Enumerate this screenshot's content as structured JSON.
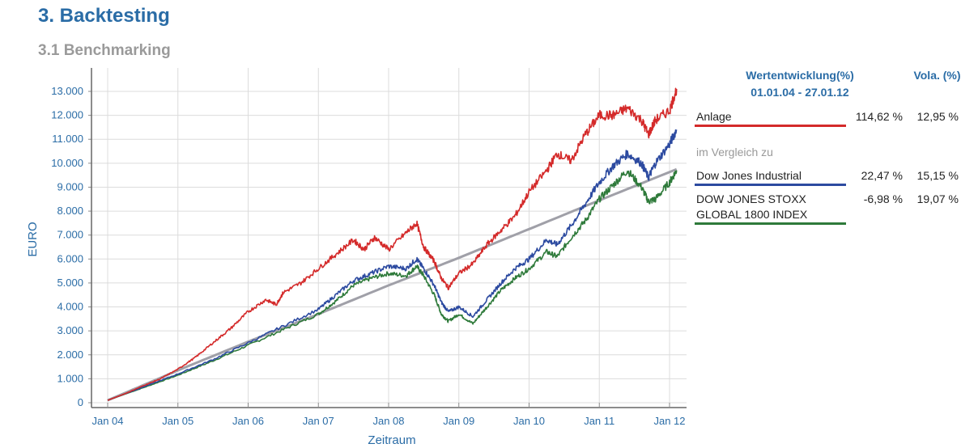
{
  "header": {
    "title": "3. Backtesting",
    "subtitle": "3.1 Benchmarking"
  },
  "legend": {
    "col_perf": "Wertentwicklung(%)",
    "col_perf_period": "01.01.04 - 27.01.12",
    "col_vola": "Vola. (%)",
    "comparison_label": "im Vergleich zu",
    "rows": [
      {
        "name_line1": "Anlage",
        "name_line2": "",
        "perf": "114,62 %",
        "vola": "12,95 %",
        "color": "#d42a2a"
      },
      {
        "name_line1": "Dow Jones Industrial",
        "name_line2": "",
        "perf": "22,47 %",
        "vola": "15,15 %",
        "color": "#2c4aa0"
      },
      {
        "name_line1": "DOW JONES STOXX",
        "name_line2": "GLOBAL 1800 INDEX",
        "perf": "-6,98 %",
        "vola": "19,07 %",
        "color": "#2e7a3a"
      }
    ]
  },
  "chart_data": {
    "type": "line",
    "xlabel": "Zeitraum",
    "ylabel": "EURO",
    "x_ticks": [
      "Jan 04",
      "Jan 05",
      "Jan 06",
      "Jan 07",
      "Jan 08",
      "Jan 09",
      "Jan 10",
      "Jan 11",
      "Jan 12"
    ],
    "y_ticks": [
      "0",
      "1.000",
      "2.000",
      "3.000",
      "4.000",
      "5.000",
      "6.000",
      "7.000",
      "8.000",
      "9.000",
      "10.000",
      "11.000",
      "12.000",
      "13.000"
    ],
    "ylim": [
      0,
      13500
    ],
    "xlim": [
      2004.0,
      2012.1
    ],
    "grid": true,
    "series": [
      {
        "name": "Anlage",
        "color": "#d42a2a",
        "x": [
          2004.0,
          2004.25,
          2004.5,
          2004.75,
          2005.0,
          2005.25,
          2005.5,
          2005.75,
          2006.0,
          2006.25,
          2006.4,
          2006.5,
          2006.75,
          2007.0,
          2007.25,
          2007.5,
          2007.65,
          2007.8,
          2008.0,
          2008.25,
          2008.4,
          2008.5,
          2008.65,
          2008.75,
          2008.85,
          2009.0,
          2009.2,
          2009.4,
          2009.6,
          2009.8,
          2010.0,
          2010.25,
          2010.4,
          2010.6,
          2010.8,
          2011.0,
          2011.2,
          2011.4,
          2011.6,
          2011.7,
          2011.8,
          2012.0,
          2012.1
        ],
        "y": [
          100,
          380,
          700,
          1000,
          1400,
          1900,
          2500,
          3100,
          3800,
          4300,
          4100,
          4600,
          5000,
          5600,
          6200,
          6800,
          6400,
          6900,
          6400,
          7100,
          7500,
          6500,
          5900,
          5200,
          4800,
          5400,
          5800,
          6600,
          7200,
          7800,
          8800,
          9700,
          10400,
          10100,
          11200,
          12000,
          12000,
          12300,
          11800,
          11200,
          11800,
          12200,
          13100
        ]
      },
      {
        "name": "Dow Jones Industrial",
        "color": "#2c4aa0",
        "x": [
          2004.0,
          2004.5,
          2005.0,
          2005.5,
          2006.0,
          2006.5,
          2007.0,
          2007.25,
          2007.5,
          2007.75,
          2008.0,
          2008.25,
          2008.4,
          2008.5,
          2008.65,
          2008.75,
          2008.85,
          2009.0,
          2009.2,
          2009.4,
          2009.6,
          2009.8,
          2010.0,
          2010.25,
          2010.4,
          2010.6,
          2010.8,
          2011.0,
          2011.2,
          2011.4,
          2011.6,
          2011.7,
          2011.8,
          2012.0,
          2012.1
        ],
        "y": [
          100,
          650,
          1200,
          1800,
          2500,
          3200,
          3900,
          4500,
          5100,
          5400,
          5700,
          5600,
          6000,
          5600,
          4900,
          4200,
          3800,
          4000,
          3600,
          4300,
          5000,
          5600,
          6000,
          6800,
          6600,
          7400,
          8300,
          9200,
          9900,
          10400,
          10000,
          9400,
          10000,
          10800,
          11400
        ]
      },
      {
        "name": "DOW JONES STOXX GLOBAL 1800 INDEX",
        "color": "#2e7a3a",
        "x": [
          2004.0,
          2004.5,
          2005.0,
          2005.5,
          2006.0,
          2006.5,
          2007.0,
          2007.25,
          2007.5,
          2007.75,
          2008.0,
          2008.25,
          2008.4,
          2008.5,
          2008.65,
          2008.75,
          2008.85,
          2009.0,
          2009.2,
          2009.4,
          2009.6,
          2009.8,
          2010.0,
          2010.25,
          2010.4,
          2010.6,
          2010.8,
          2011.0,
          2011.2,
          2011.4,
          2011.6,
          2011.7,
          2011.8,
          2012.0,
          2012.1
        ],
        "y": [
          100,
          620,
          1150,
          1750,
          2400,
          3050,
          3700,
          4250,
          4900,
          5200,
          5400,
          5300,
          5700,
          5300,
          4500,
          3700,
          3400,
          3700,
          3300,
          4000,
          4700,
          5200,
          5600,
          6300,
          6100,
          6900,
          7600,
          8500,
          9100,
          9700,
          9000,
          8400,
          8500,
          9200,
          9700
        ]
      },
      {
        "name": "",
        "color": "#a0a0a8",
        "x": [
          2004.0,
          2005.0,
          2006.0,
          2007.0,
          2008.0,
          2009.0,
          2010.0,
          2011.0,
          2012.1
        ],
        "y": [
          100,
          1350,
          2550,
          3700,
          4900,
          6050,
          7250,
          8450,
          9750
        ]
      }
    ]
  }
}
